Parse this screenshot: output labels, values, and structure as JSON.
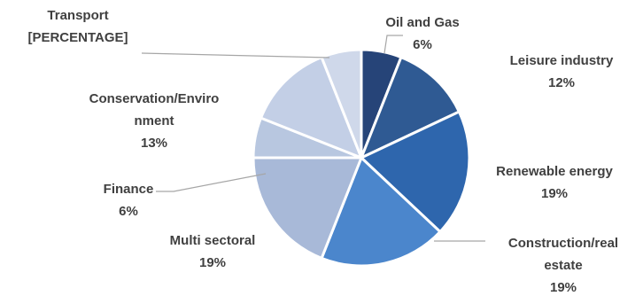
{
  "chart_data": {
    "type": "pie",
    "title": "",
    "slices": [
      {
        "label": [
          "Oil and Gas"
        ],
        "value_text": "6%",
        "value": 6,
        "color": "#264478"
      },
      {
        "label": [
          "Leisure industry"
        ],
        "value_text": "12%",
        "value": 12,
        "color": "#2f5a93"
      },
      {
        "label": [
          "Renewable energy"
        ],
        "value_text": "19%",
        "value": 19,
        "color": "#2e66ad"
      },
      {
        "label": [
          "Construction/real",
          "estate"
        ],
        "value_text": "19%",
        "value": 19,
        "color": "#4b86cc"
      },
      {
        "label": [
          "Multi sectoral"
        ],
        "value_text": "19%",
        "value": 19,
        "color": "#a8b9d8"
      },
      {
        "label": [
          "Finance"
        ],
        "value_text": "6%",
        "value": 6,
        "color": "#b8c7e0"
      },
      {
        "label": [
          "Conservation/Enviro",
          "nment"
        ],
        "value_text": "13%",
        "value": 13,
        "color": "#c3cfe6"
      },
      {
        "label": [
          "Transport"
        ],
        "value_text": "[PERCENTAGE]",
        "value": 6,
        "color": "#cfd8ea"
      }
    ]
  }
}
